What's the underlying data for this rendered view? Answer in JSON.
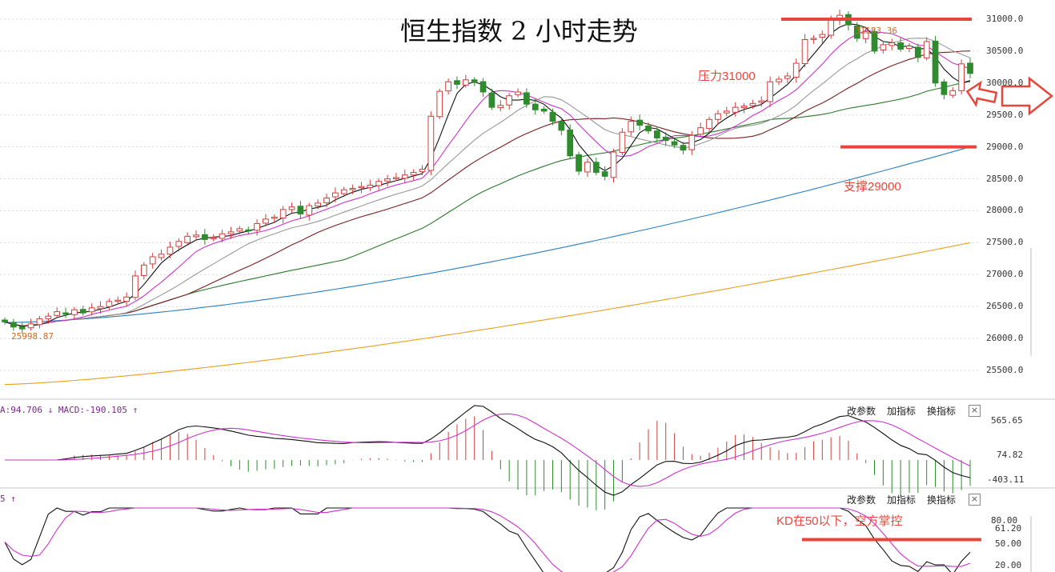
{
  "chart_data": {
    "type": "candlestick",
    "title": "恒生指数 2 小时走势",
    "y_ticks": [
      "31000.0",
      "30500.0",
      "30000.0",
      "29500.0",
      "29000.0",
      "28500.0",
      "28000.0",
      "27500.0",
      "27000.0",
      "26500.0",
      "26000.0",
      "25500.0"
    ],
    "ylim": [
      25100,
      31300
    ],
    "high_label": "31183.36",
    "low_label": "25998.87",
    "closes": [
      26260,
      26180,
      26150,
      26230,
      26310,
      26350,
      26420,
      26380,
      26450,
      26400,
      26480,
      26500,
      26580,
      26600,
      26650,
      26980,
      27150,
      27280,
      27320,
      27430,
      27520,
      27600,
      27620,
      27550,
      27580,
      27640,
      27670,
      27720,
      27700,
      27800,
      27870,
      27900,
      28020,
      28060,
      27950,
      28080,
      28120,
      28200,
      28280,
      28330,
      28350,
      28380,
      28400,
      28460,
      28500,
      28520,
      28560,
      28600,
      28650,
      29480,
      29870,
      30020,
      29980,
      30050,
      30010,
      29860,
      29620,
      29650,
      29800,
      29860,
      29670,
      29580,
      29560,
      29400,
      29260,
      28860,
      28620,
      28760,
      28600,
      28540,
      28920,
      29230,
      29400,
      29340,
      29250,
      29140,
      29100,
      29030,
      28950,
      29180,
      29300,
      29430,
      29520,
      29560,
      29620,
      29640,
      29680,
      29720,
      30020,
      30060,
      30110,
      30310,
      30680,
      30700,
      30760,
      30980,
      31060,
      30910,
      30700,
      30800,
      30500,
      30600,
      30630,
      30530,
      30580,
      30400,
      30650,
      30000,
      29820,
      29880,
      30300,
      30150
    ],
    "support": {
      "label": "支撑29000",
      "value": 29000
    },
    "resistance": {
      "label": "压力31000",
      "value": 31000
    },
    "macd": {
      "label": "A:94.706 ↓ MACD:-190.105 ↑",
      "ticks": [
        "565.65",
        "74.82",
        "-403.11"
      ]
    },
    "kd": {
      "label": "5 ↑",
      "ticks": [
        "80.00",
        "61.20",
        "50.00",
        "20.00"
      ],
      "annotation": "KD在50以下，空方掌控",
      "ref_line": 50
    },
    "colors": {
      "up": "#d23d3d",
      "down": "#2e8b2e",
      "ma5": "#111111",
      "ma10": "#cc33cc",
      "ma20": "#999999",
      "ma30": "#7a1f1f",
      "ma60": "#2a7a2a",
      "ma120": "#2b7fc1",
      "ma250": "#e8a020",
      "annotation": "#e8463c"
    }
  },
  "panel_buttons": {
    "change_params": "改参数",
    "add_indicator": "加指标",
    "switch_indicator": "换指标",
    "close": "×"
  }
}
